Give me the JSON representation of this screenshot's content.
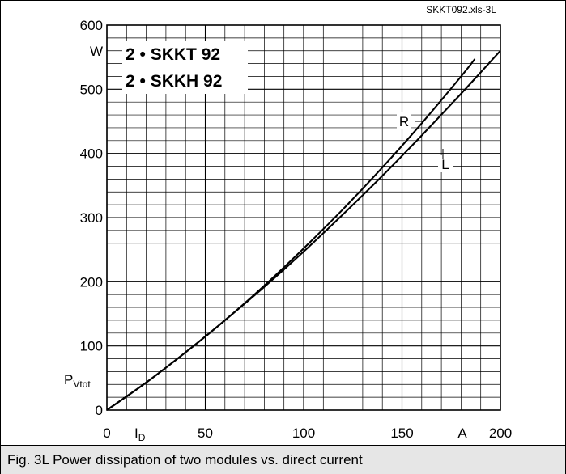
{
  "chart_data": {
    "type": "line",
    "source_tag": "SKKT092.xls-3L",
    "title_lines": [
      "2 • SKKT 92",
      "2 • SKKH 92"
    ],
    "caption": "Fig. 3L Power dissipation of two modules vs. direct current",
    "xlim": [
      0,
      200
    ],
    "ylim": [
      0,
      600
    ],
    "x_ticks": [
      0,
      50,
      100,
      150,
      200
    ],
    "x_tick_labels": [
      "0",
      "50",
      "100",
      "150",
      "200"
    ],
    "y_ticks": [
      0,
      100,
      200,
      300,
      400,
      500,
      600
    ],
    "y_tick_labels": [
      "0",
      "100",
      "200",
      "300",
      "400",
      "500",
      "600"
    ],
    "x_grid_step": 10,
    "y_grid_step": 20,
    "grid": true,
    "x_symbol": {
      "main": "I",
      "sub": "D"
    },
    "x_unit": "A",
    "y_symbol": {
      "main": "P",
      "sub": "Vtot"
    },
    "y_unit": "W",
    "series": [
      {
        "name": "R",
        "x": [
          0,
          20,
          40,
          60,
          80,
          100,
          120,
          140,
          160,
          180,
          187
        ],
        "y": [
          0,
          43,
          90,
          140,
          194,
          252,
          313,
          378,
          447,
          520,
          547
        ]
      },
      {
        "name": "L",
        "x": [
          0,
          20,
          40,
          60,
          80,
          100,
          120,
          140,
          160,
          180,
          200
        ],
        "y": [
          0,
          43,
          90,
          140,
          192,
          247,
          305,
          365,
          428,
          493,
          560
        ]
      }
    ]
  }
}
